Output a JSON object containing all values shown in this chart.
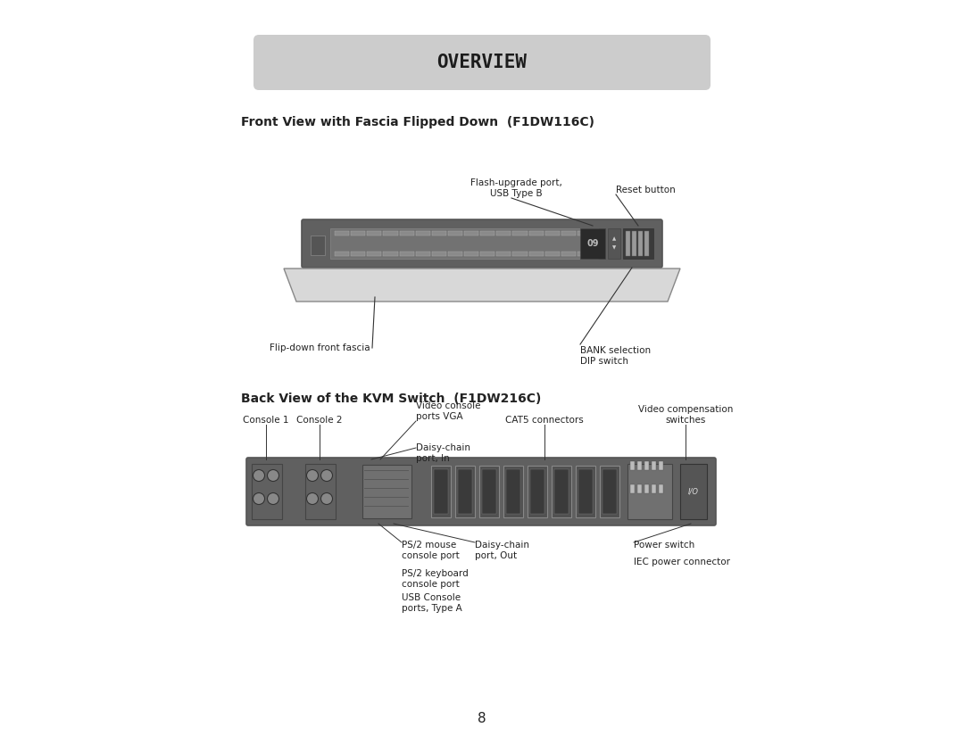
{
  "bg_color": "#ffffff",
  "overview_box_color": "#cccccc",
  "overview_text": "OVERVIEW",
  "section1_title": "Front View with Fascia Flipped Down  (F1DW116C)",
  "section2_title": "Back View of the KVM Switch  (F1DW216C)",
  "page_number": "8",
  "front_labels": {
    "flash_upgrade": "Flash-upgrade port,\nUSB Type B",
    "reset_button": "Reset button",
    "flip_down": "Flip-down front fascia",
    "bank_selection": "BANK selection\nDIP switch"
  },
  "back_labels": {
    "console1": "Console 1",
    "console2": "Console 2",
    "video_console": "Video console\nports VGA",
    "daisy_chain_in": "Daisy-chain\nport, In",
    "cat5": "CAT5 connectors",
    "video_comp": "Video compensation\nswitches",
    "ps2_mouse": "PS/2 mouse\nconsole port",
    "daisy_chain_out": "Daisy-chain\nport, Out",
    "ps2_keyboard": "PS/2 keyboard\nconsole port",
    "usb_console": "USB Console\nports, Type A",
    "power_switch": "Power switch",
    "iec_power": "IEC power connector"
  }
}
